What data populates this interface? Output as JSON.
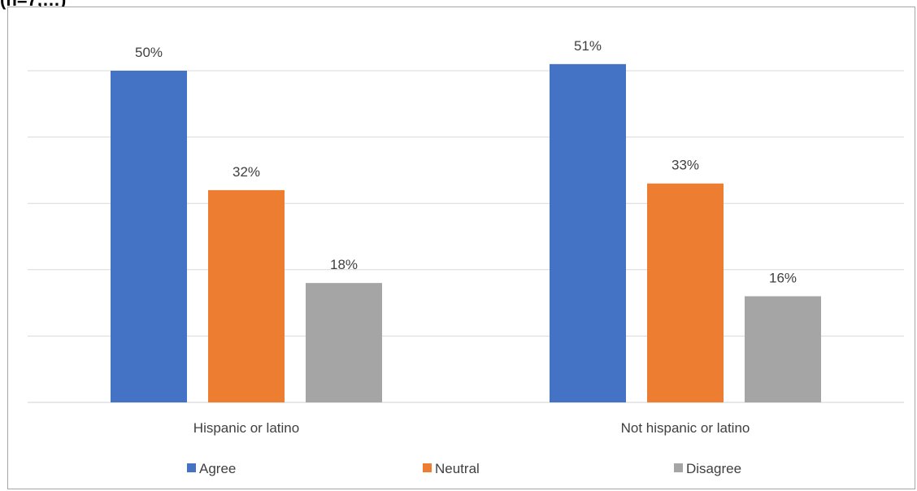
{
  "header": {
    "fragment": "(n=7,…)"
  },
  "colors": {
    "agree": "#4472c4",
    "neutral": "#ed7d31",
    "disagree": "#a5a5a5",
    "grid": "#d9d9d9",
    "text": "#404040"
  },
  "chart_data": {
    "type": "bar",
    "title": "",
    "categories": [
      "Hispanic or latino",
      "Not hispanic or latino"
    ],
    "series": [
      {
        "name": "Agree",
        "values": [
          50,
          51
        ],
        "labels": [
          "50%",
          "51%"
        ]
      },
      {
        "name": "Neutral",
        "values": [
          32,
          33
        ],
        "labels": [
          "32%",
          "33%"
        ]
      },
      {
        "name": "Disagree",
        "values": [
          18,
          16
        ],
        "labels": [
          "18%",
          "16%"
        ]
      }
    ],
    "ylim": [
      0,
      60
    ],
    "unit": "%",
    "gridlines": true,
    "legend_position": "bottom"
  }
}
